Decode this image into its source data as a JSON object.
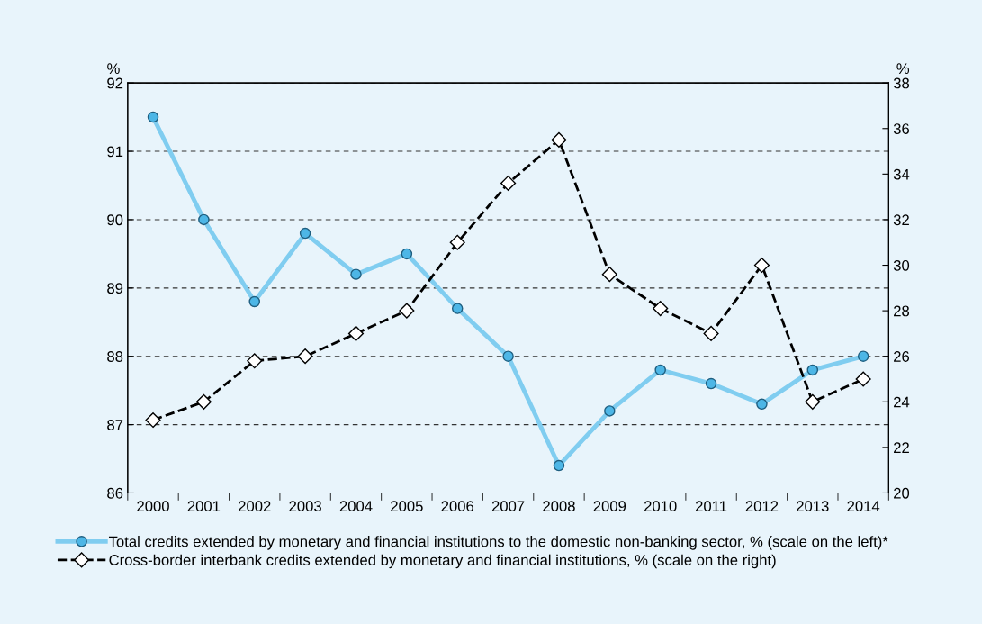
{
  "chart_data": {
    "type": "line",
    "categories": [
      "2000",
      "2001",
      "2002",
      "2003",
      "2004",
      "2005",
      "2006",
      "2007",
      "2008",
      "2009",
      "2010",
      "2011",
      "2012",
      "2013",
      "2014"
    ],
    "series": [
      {
        "name": "Total credits extended by monetary and financial institutions to the domestic non-banking sector, % (scale on the left)*",
        "color": "#80cdf0",
        "marker": "circle",
        "line_style": "solid",
        "values": [
          91.5,
          90.0,
          88.8,
          89.8,
          89.2,
          89.5,
          88.7,
          88.0,
          86.4,
          87.2,
          87.8,
          87.6,
          87.3,
          87.8,
          88.0
        ]
      },
      {
        "name": "Cross-border interbank credits extended by monetary and financial institutions, % (scale on the right)",
        "color": "#000000",
        "marker": "diamond",
        "line_style": "dashed",
        "axis": "y2",
        "values": [
          23.2,
          24.0,
          25.8,
          26.0,
          27.0,
          28.0,
          31.0,
          33.6,
          35.5,
          29.6,
          28.1,
          27.0,
          30.0,
          24.0,
          25.0
        ]
      }
    ],
    "ylabel": "%",
    "y2label": "%",
    "ylim": [
      86,
      92
    ],
    "yticks": [
      86,
      87,
      88,
      89,
      90,
      91,
      92
    ],
    "y2lim": [
      20,
      38
    ],
    "y2ticks": [
      20,
      22,
      24,
      26,
      28,
      30,
      32,
      34,
      36,
      38
    ],
    "grid": "y",
    "legend": "bottom"
  }
}
